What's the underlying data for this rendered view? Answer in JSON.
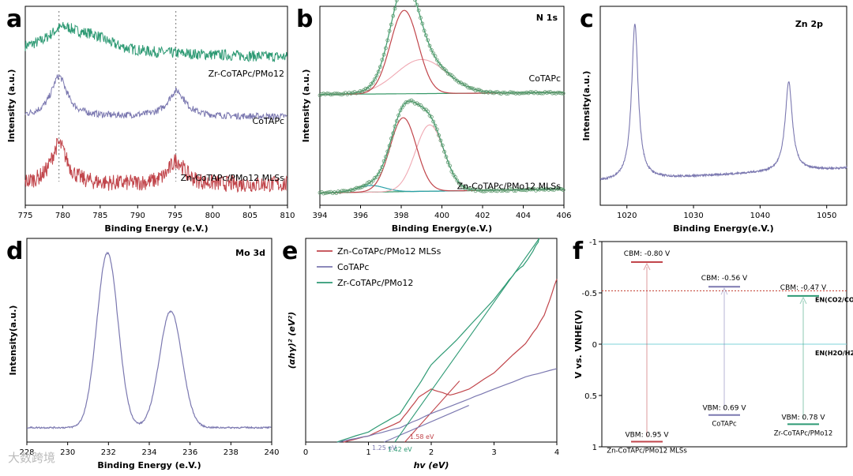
{
  "watermark": "大数跨境",
  "colors": {
    "green": "#2e9a74",
    "purple": "#7b78b0",
    "red": "#c1454b",
    "pink": "#f0a9b3",
    "fit_green": "#3a9a6a",
    "bg_line": "#2aa0a8"
  },
  "chart_data": [
    {
      "panel": "a",
      "type": "line",
      "xlabel": "Binding Energy (e.V.)",
      "ylabel": "Intensity (a.u.)",
      "xlim": [
        775,
        810
      ],
      "xticks": [
        775,
        780,
        785,
        790,
        795,
        800,
        805,
        810
      ],
      "ref_lines_x": [
        779.5,
        795.1
      ],
      "series": [
        {
          "name": "Zr-CoTAPc/PMo12",
          "color": "green",
          "offset": 0.8,
          "peaks": [
            [
              780,
              0.11,
              2.5
            ],
            [
              784,
              0.07,
              3
            ]
          ],
          "base_slope": -0.001,
          "noise": 0.03
        },
        {
          "name": "CoTAPc",
          "color": "purple",
          "offset": 0.44,
          "peaks": [
            [
              779.5,
              0.22,
              1.3
            ],
            [
              795.2,
              0.14,
              1.4
            ]
          ],
          "base_slope": 0.0,
          "noise": 0.018
        },
        {
          "name": "Zn-CoTAPc/PMo12 MLSs",
          "color": "red",
          "offset": 0.07,
          "peaks": [
            [
              779.5,
              0.22,
              1.3
            ],
            [
              795.2,
              0.13,
              1.3
            ]
          ],
          "base_slope": 0.0,
          "noise": 0.045
        }
      ]
    },
    {
      "panel": "b",
      "type": "line",
      "title": "N 1s",
      "xlabel": "Binding Energy(e.V.)",
      "ylabel": "Intensity (a.u.)",
      "xlim": [
        394,
        406
      ],
      "xticks": [
        394,
        396,
        398,
        400,
        402,
        404,
        406
      ],
      "groups": [
        {
          "name": "CoTAPc",
          "offset": 0.56,
          "components": [
            [
              398.15,
              0.44,
              0.68
            ],
            [
              399.0,
              0.18,
              1.25
            ]
          ],
          "baseline": [
            0.0,
            0.01
          ]
        },
        {
          "name": "Zn-CoTAPc/PMo12 MLSs",
          "offset": 0.04,
          "components": [
            [
              398.1,
              0.39,
              0.65
            ],
            [
              399.4,
              0.35,
              0.7
            ]
          ],
          "baseline": [
            0.0,
            0.02
          ],
          "extra": [
            396.5,
            0.035,
            0.7
          ]
        }
      ]
    },
    {
      "panel": "c",
      "type": "line",
      "title": "Zn 2p",
      "xlabel": "Binding Energy(e.V.)",
      "ylabel": "Intensity(a.u.)",
      "xlim": [
        1016,
        1053
      ],
      "xticks": [
        1020,
        1030,
        1040,
        1050
      ],
      "series": [
        {
          "color": "purple",
          "base": [
            0.1,
            0.17
          ],
          "peaks": [
            [
              1021.2,
              0.82,
              0.6
            ],
            [
              1044.3,
              0.47,
              0.65
            ]
          ],
          "noise": 0.005
        }
      ]
    },
    {
      "panel": "d",
      "type": "line",
      "title": "Mo 3d",
      "xlabel": "Binding Energy (e.V.)",
      "ylabel": "Intensity(a.u.)",
      "xlim": [
        228,
        240
      ],
      "xticks": [
        228,
        230,
        232,
        234,
        236,
        238,
        240
      ],
      "series": [
        {
          "color": "purple",
          "base": 0.05,
          "peaks": [
            [
              231.95,
              0.9,
              0.52
            ],
            [
              235.05,
              0.6,
              0.55
            ]
          ],
          "noise": 0.004
        }
      ]
    },
    {
      "panel": "e",
      "type": "line",
      "xlabel": "hv (eV)",
      "ylabel": "(αhγ)² (eV²)",
      "xlim": [
        0,
        4
      ],
      "xticks": [
        0,
        1,
        2,
        3,
        4
      ],
      "annotations": [
        {
          "text": "1.25 eV",
          "x": 1.25,
          "color": "purple"
        },
        {
          "text": "1.42 eV",
          "x": 1.5,
          "color": "green"
        },
        {
          "text": "1.58 eV",
          "x": 1.85,
          "color": "red"
        }
      ],
      "series": [
        {
          "name": "Zn-CoTAPc/PMo12 MLSs",
          "color": "red",
          "points": [
            [
              0.6,
              0
            ],
            [
              1.0,
              0.03
            ],
            [
              1.5,
              0.1
            ],
            [
              1.8,
              0.22
            ],
            [
              2.0,
              0.26
            ],
            [
              2.3,
              0.23
            ],
            [
              2.6,
              0.26
            ],
            [
              3.0,
              0.34
            ],
            [
              3.5,
              0.48
            ],
            [
              3.8,
              0.62
            ],
            [
              4.0,
              0.8
            ]
          ],
          "tangent": [
            [
              1.58,
              0
            ],
            [
              2.45,
              0.3
            ]
          ]
        },
        {
          "name": "CoTAPc",
          "color": "purple",
          "points": [
            [
              0.5,
              0
            ],
            [
              1.0,
              0.03
            ],
            [
              1.5,
              0.07
            ],
            [
              2.0,
              0.14
            ],
            [
              2.5,
              0.2
            ],
            [
              3.0,
              0.26
            ],
            [
              3.5,
              0.32
            ],
            [
              4.0,
              0.36
            ]
          ],
          "tangent": [
            [
              1.25,
              0
            ],
            [
              2.6,
              0.18
            ]
          ]
        },
        {
          "name": "Zr-CoTAPc/PMo12",
          "color": "green",
          "points": [
            [
              0.5,
              0
            ],
            [
              1.0,
              0.05
            ],
            [
              1.5,
              0.14
            ],
            [
              1.8,
              0.28
            ],
            [
              2.0,
              0.38
            ],
            [
              2.4,
              0.5
            ],
            [
              3.0,
              0.7
            ],
            [
              3.3,
              0.82
            ],
            [
              3.5,
              0.88
            ],
            [
              3.7,
              0.98
            ],
            [
              3.72,
              1.0
            ]
          ],
          "tangent": [
            [
              1.42,
              0
            ],
            [
              3.72,
              1.0
            ]
          ]
        }
      ]
    },
    {
      "panel": "f",
      "type": "diagram",
      "ylabel": "V vs. VNHE(V)",
      "ylim": [
        -1,
        1
      ],
      "yticks": [
        -1,
        -0.5,
        0,
        0.5,
        1
      ],
      "ytick_labels": [
        "-1",
        "-0.5",
        "0",
        "0.5",
        "1"
      ],
      "levels": [
        {
          "material": "Zn-CoTAPc/PMo12 MLSs",
          "color": "red",
          "cb": -0.8,
          "vb": 0.95,
          "cb_label": "CBM: -0.80 V",
          "vb_label": "VBM: 0.95 V"
        },
        {
          "material": "CoTAPc",
          "color": "purple",
          "cb": -0.56,
          "vb": 0.69,
          "cb_label": "CBM: -0.56 V",
          "vb_label": "VBM: 0.69 V"
        },
        {
          "material": "Zr-CoTAPc/PMo12",
          "color": "green",
          "cb": -0.47,
          "vb": 0.78,
          "cb_label": "CBM: -0.47 V",
          "vb_label": "VBM: 0.78 V"
        }
      ],
      "ref_lines": [
        {
          "y": -0.52,
          "label": "EN(CO2/CO)",
          "color": "red",
          "dotted": true
        },
        {
          "y": 0.0,
          "label": "EN(H2O/H2)",
          "color": "teal",
          "dotted": false
        }
      ]
    }
  ]
}
